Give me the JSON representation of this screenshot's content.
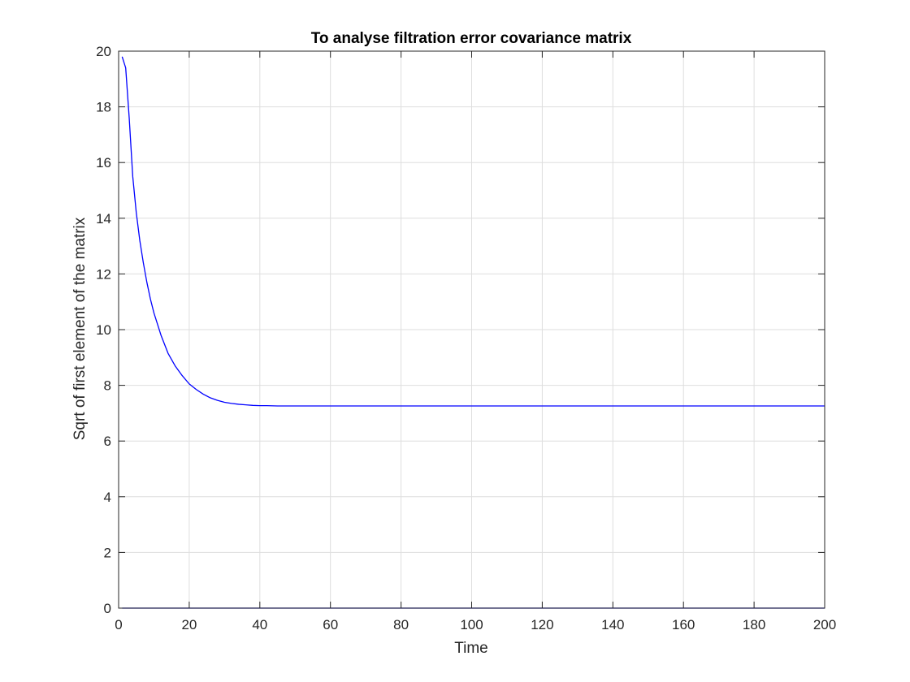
{
  "chart_data": {
    "type": "line",
    "title": "To analyse filtration error covariance matrix",
    "xlabel": "Time",
    "ylabel": "Sqrt of first element of the matrix",
    "xlim": [
      0,
      200
    ],
    "ylim": [
      0,
      20
    ],
    "xticks": [
      0,
      20,
      40,
      60,
      80,
      100,
      120,
      140,
      160,
      180,
      200
    ],
    "yticks": [
      0,
      2,
      4,
      6,
      8,
      10,
      12,
      14,
      16,
      18,
      20
    ],
    "grid": true,
    "legend": "none",
    "series": [
      {
        "color": "#0000ff",
        "x": [
          1,
          2,
          3,
          4,
          5,
          6,
          7,
          8,
          9,
          10,
          12,
          14,
          16,
          18,
          20,
          22,
          24,
          26,
          28,
          30,
          32,
          34,
          36,
          38,
          40,
          42,
          45,
          50,
          60,
          80,
          100,
          120,
          140,
          160,
          180,
          200
        ],
        "y": [
          19.8,
          19.4,
          17.6,
          15.5,
          14.2,
          13.2,
          12.4,
          11.7,
          11.1,
          10.6,
          9.8,
          9.15,
          8.7,
          8.35,
          8.05,
          7.85,
          7.68,
          7.55,
          7.46,
          7.39,
          7.35,
          7.32,
          7.3,
          7.28,
          7.27,
          7.27,
          7.26,
          7.26,
          7.26,
          7.26,
          7.26,
          7.26,
          7.26,
          7.26,
          7.26,
          7.26
        ]
      },
      {
        "color": "#0000ff",
        "x": [
          1,
          200
        ],
        "y": [
          0,
          0
        ]
      }
    ]
  }
}
